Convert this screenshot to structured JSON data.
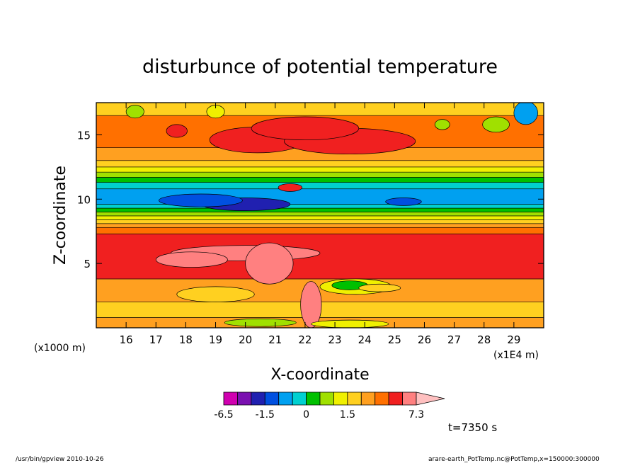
{
  "chart_data": {
    "type": "heatmap",
    "title": "disturbunce of potential temperature",
    "xlabel": "X-coordinate",
    "ylabel": "Z-coordinate",
    "x_unit": "(x1E4 m)",
    "y_unit": "(x1000 m)",
    "xlim": [
      15.0,
      30.0
    ],
    "ylim": [
      0.0,
      17.5
    ],
    "x_ticks": [
      "16",
      "17",
      "18",
      "19",
      "20",
      "21",
      "22",
      "23",
      "24",
      "25",
      "26",
      "27",
      "28",
      "29"
    ],
    "y_ticks": [
      "5",
      "10",
      "15"
    ],
    "colorbar": {
      "colors": [
        "#d000b0",
        "#7a10b0",
        "#2020b0",
        "#0050e0",
        "#00a0f0",
        "#00d0d0",
        "#00c000",
        "#a0e000",
        "#f0f000",
        "#ffd020",
        "#ffa020",
        "#ff7000",
        "#f02020",
        "#ff8080",
        "#ffc0c0"
      ],
      "tick_labels": [
        "-6.5",
        "-1.5",
        "0",
        "1.5",
        "7.3"
      ]
    },
    "bands": [
      {
        "z0": 0.0,
        "z1": 0.8,
        "level": 1.5
      },
      {
        "z0": 0.8,
        "z1": 2.0,
        "level": 1.0
      },
      {
        "z0": 2.0,
        "z1": 3.8,
        "level": 1.5
      },
      {
        "z0": 3.8,
        "z1": 7.3,
        "level": 2.5
      },
      {
        "z0": 7.3,
        "z1": 7.8,
        "level": 2.0
      },
      {
        "z0": 7.8,
        "z1": 8.1,
        "level": 1.5
      },
      {
        "z0": 8.1,
        "z1": 8.4,
        "level": 1.0
      },
      {
        "z0": 8.4,
        "z1": 8.7,
        "level": 0.5
      },
      {
        "z0": 8.7,
        "z1": 9.0,
        "level": 0.0
      },
      {
        "z0": 9.0,
        "z1": 9.3,
        "level": -0.5
      },
      {
        "z0": 9.3,
        "z1": 9.6,
        "level": -1.0
      },
      {
        "z0": 9.6,
        "z1": 10.8,
        "level": -1.5
      },
      {
        "z0": 10.8,
        "z1": 11.3,
        "level": -1.0
      },
      {
        "z0": 11.3,
        "z1": 11.7,
        "level": -0.5
      },
      {
        "z0": 11.7,
        "z1": 12.1,
        "level": 0.0
      },
      {
        "z0": 12.1,
        "z1": 12.5,
        "level": 0.5
      },
      {
        "z0": 12.5,
        "z1": 13.0,
        "level": 1.0
      },
      {
        "z0": 13.0,
        "z1": 14.0,
        "level": 1.5
      },
      {
        "z0": 14.0,
        "z1": 16.5,
        "level": 2.0
      },
      {
        "z0": 16.5,
        "z1": 17.5,
        "level": 1.0
      }
    ],
    "blobs": [
      {
        "x": 20.0,
        "z": 9.6,
        "rx": 1.5,
        "rz": 0.5,
        "level": -4.0
      },
      {
        "x": 18.5,
        "z": 9.9,
        "rx": 1.4,
        "rz": 0.5,
        "level": -2.5
      },
      {
        "x": 25.3,
        "z": 9.8,
        "rx": 0.6,
        "rz": 0.3,
        "level": -2.5
      },
      {
        "x": 20.0,
        "z": 5.8,
        "rx": 2.5,
        "rz": 0.6,
        "level": 4.0
      },
      {
        "x": 18.2,
        "z": 5.3,
        "rx": 1.2,
        "rz": 0.6,
        "level": 4.0
      },
      {
        "x": 20.8,
        "z": 5.0,
        "rx": 0.8,
        "rz": 1.6,
        "level": 4.0
      },
      {
        "x": 22.2,
        "z": 1.8,
        "rx": 0.35,
        "rz": 1.8,
        "level": 4.0
      },
      {
        "x": 23.7,
        "z": 3.2,
        "rx": 1.2,
        "rz": 0.6,
        "level": 0.5
      },
      {
        "x": 23.5,
        "z": 3.3,
        "rx": 0.6,
        "rz": 0.35,
        "level": -0.5
      },
      {
        "x": 24.5,
        "z": 3.1,
        "rx": 0.7,
        "rz": 0.3,
        "level": 1.0
      },
      {
        "x": 19.0,
        "z": 2.6,
        "rx": 1.3,
        "rz": 0.6,
        "level": 1.0
      },
      {
        "x": 20.4,
        "z": 14.6,
        "rx": 1.6,
        "rz": 1.0,
        "level": 2.5
      },
      {
        "x": 23.5,
        "z": 14.5,
        "rx": 2.2,
        "rz": 1.0,
        "level": 2.5
      },
      {
        "x": 22.0,
        "z": 15.5,
        "rx": 1.8,
        "rz": 0.9,
        "level": 2.5
      },
      {
        "x": 17.7,
        "z": 15.3,
        "rx": 0.35,
        "rz": 0.5,
        "level": 2.5
      },
      {
        "x": 29.4,
        "z": 16.7,
        "rx": 0.4,
        "rz": 0.9,
        "level": -1.5
      },
      {
        "x": 28.4,
        "z": 15.8,
        "rx": 0.45,
        "rz": 0.6,
        "level": 0.0
      },
      {
        "x": 26.6,
        "z": 15.8,
        "rx": 0.25,
        "rz": 0.4,
        "level": 0.0
      },
      {
        "x": 16.3,
        "z": 16.8,
        "rx": 0.3,
        "rz": 0.5,
        "level": 0.0
      },
      {
        "x": 19.0,
        "z": 16.8,
        "rx": 0.3,
        "rz": 0.5,
        "level": 0.5
      },
      {
        "x": 21.5,
        "z": 10.9,
        "rx": 0.4,
        "rz": 0.3,
        "level": 3.0
      },
      {
        "x": 23.5,
        "z": 0.3,
        "rx": 1.3,
        "rz": 0.3,
        "level": 0.5
      },
      {
        "x": 20.5,
        "z": 0.4,
        "rx": 1.2,
        "rz": 0.3,
        "level": 0.0
      }
    ],
    "contour_levels": [
      -6.5,
      -4.0,
      -2.5,
      -1.5,
      -1.0,
      -0.5,
      0.0,
      0.5,
      1.0,
      1.5,
      2.0,
      2.5,
      4.0,
      5.5,
      7.3
    ]
  },
  "annotations": {
    "time_label": "t=7350 s",
    "footer_left": "/usr/bin/gpview   2010-10-26",
    "footer_right": "arare-earth_PotTemp.nc@PotTemp,x=150000:300000"
  }
}
